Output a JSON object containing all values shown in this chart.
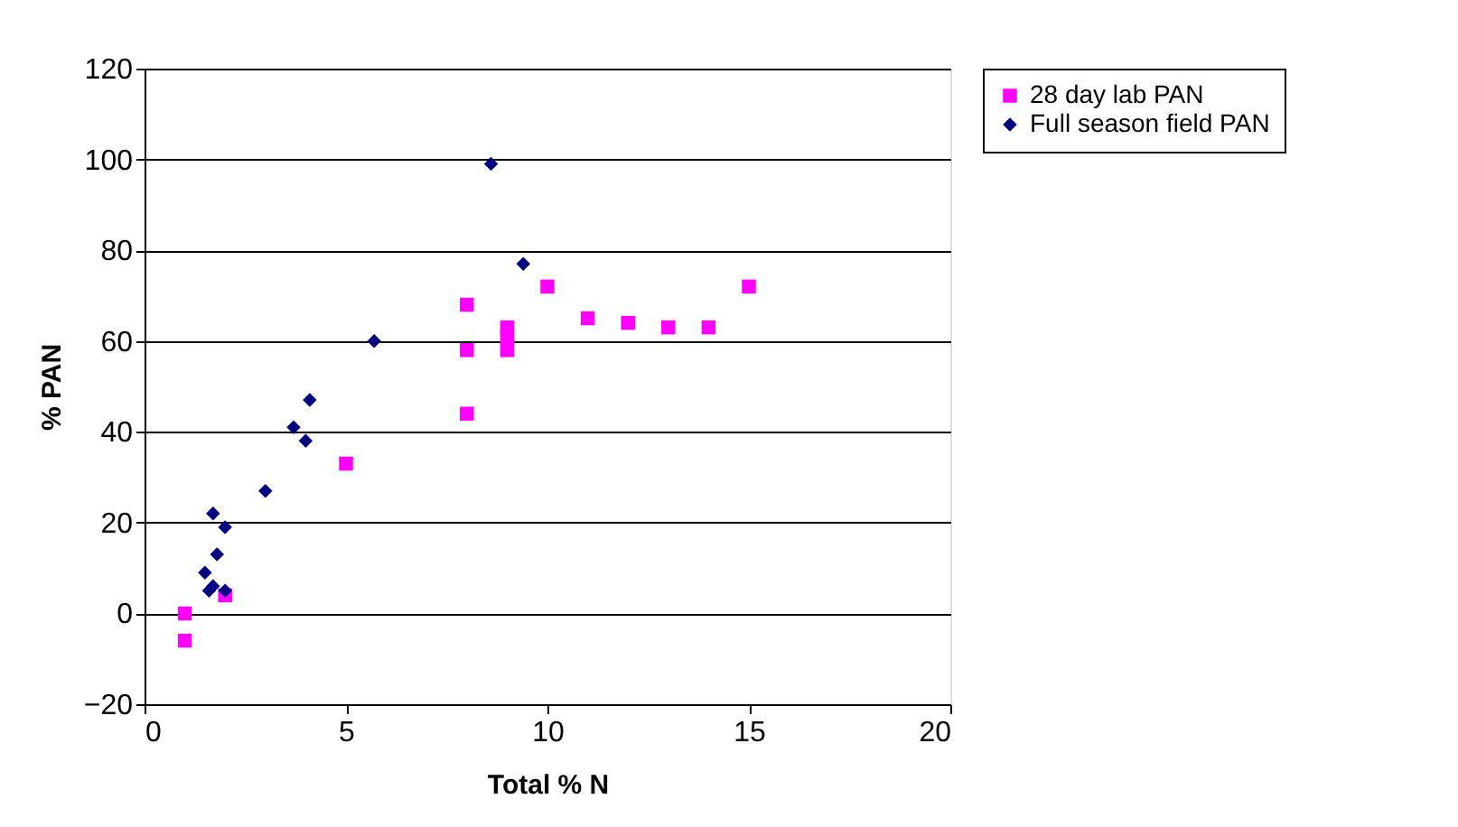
{
  "chart_data": {
    "type": "scatter",
    "xlabel": "Total % N",
    "ylabel": "% PAN",
    "xlim": [
      0,
      20
    ],
    "xticks": [
      0,
      5,
      10,
      15,
      20
    ],
    "ylim": [
      -20,
      120
    ],
    "yticks": [
      -20,
      0,
      20,
      40,
      60,
      80,
      100,
      120
    ],
    "grid": "y",
    "legend": "right",
    "series": [
      {
        "name": "28 day lab PAN",
        "color": "#ff00ff",
        "marker": "square",
        "x": [
          1,
          1,
          2,
          5,
          8,
          8,
          8,
          9,
          9,
          9,
          10,
          11,
          12,
          13,
          14,
          15
        ],
        "values": [
          0,
          -6,
          4,
          33,
          68,
          58,
          44,
          63,
          61,
          58,
          72,
          65,
          64,
          63,
          63,
          72
        ]
      },
      {
        "name": "Full season field PAN",
        "color": "#000080",
        "marker": "diamond",
        "x": [
          1.5,
          1.6,
          1.7,
          1.7,
          1.8,
          2,
          2,
          3,
          3.7,
          4,
          4.1,
          5.7,
          8.6,
          9.4
        ],
        "values": [
          9,
          5,
          22,
          6,
          13,
          19,
          5,
          27,
          41,
          38,
          47,
          60,
          99,
          77
        ]
      }
    ]
  }
}
